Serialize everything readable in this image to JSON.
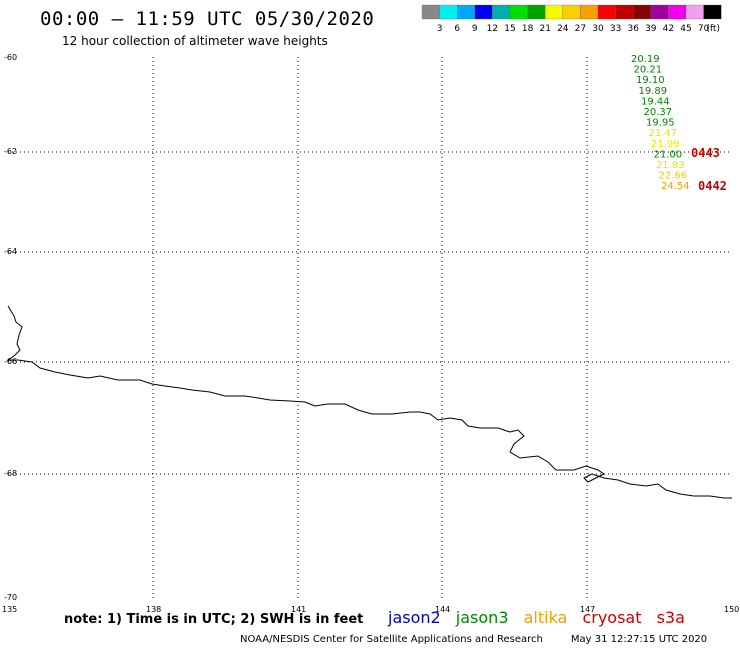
{
  "header": {
    "title": "00:00 – 11:59 UTC 05/30/2020",
    "subtitle": "12 hour collection of altimeter wave heights"
  },
  "colorbar": {
    "colors": [
      "#888888",
      "#00f0f0",
      "#00a8f8",
      "#0000f8",
      "#00b0b0",
      "#00e000",
      "#00a000",
      "#f8f800",
      "#f8d000",
      "#f8a000",
      "#f80000",
      "#c00000",
      "#880000",
      "#a000a0",
      "#f000f0",
      "#f0a0f0",
      "#000000"
    ],
    "labels": [
      "3",
      "6",
      "9",
      "12",
      "15",
      "18",
      "21",
      "24",
      "27",
      "30",
      "33",
      "36",
      "39",
      "42",
      "45",
      "70",
      "(ft)"
    ]
  },
  "axes": {
    "lat_ticks": [
      "-60",
      "-62",
      "-64",
      "-66",
      "-68",
      "-70"
    ],
    "lon_ticks": [
      "135",
      "138",
      "141",
      "144",
      "147",
      "150"
    ]
  },
  "observations": [
    {
      "value": "20.19",
      "color": "#008800"
    },
    {
      "value": "20.21",
      "color": "#008800"
    },
    {
      "value": "19.10",
      "color": "#008800"
    },
    {
      "value": "19.89",
      "color": "#008800"
    },
    {
      "value": "19.44",
      "color": "#008800"
    },
    {
      "value": "20.37",
      "color": "#008800"
    },
    {
      "value": "19.95",
      "color": "#008800"
    },
    {
      "value": "21.47",
      "color": "#e8e800"
    },
    {
      "value": "21.99",
      "color": "#e8e800"
    },
    {
      "value": "21.00",
      "color": "#008800"
    },
    {
      "value": "21.83",
      "color": "#e8e800"
    },
    {
      "value": "22.66",
      "color": "#e8d000"
    },
    {
      "value": "24.54",
      "color": "#f0a000"
    }
  ],
  "time_labels": [
    {
      "text": "0443",
      "color": "#cc0000"
    },
    {
      "text": "0442",
      "color": "#cc0000"
    }
  ],
  "footer": {
    "note": "note: 1) Time is in UTC; 2) SWH is in feet",
    "legend": [
      {
        "name": "jason2",
        "color": "#0000cc"
      },
      {
        "name": "jason3",
        "color": "#008800"
      },
      {
        "name": "altika",
        "color": "#f0a000"
      },
      {
        "name": "cryosat",
        "color": "#cc0000"
      },
      {
        "name": "s3a",
        "color": "#cc0000"
      }
    ],
    "credit": "NOAA/NESDIS Center for Satellite Applications and Research",
    "timestamp": "May 31 12:27:15 UTC 2020"
  }
}
